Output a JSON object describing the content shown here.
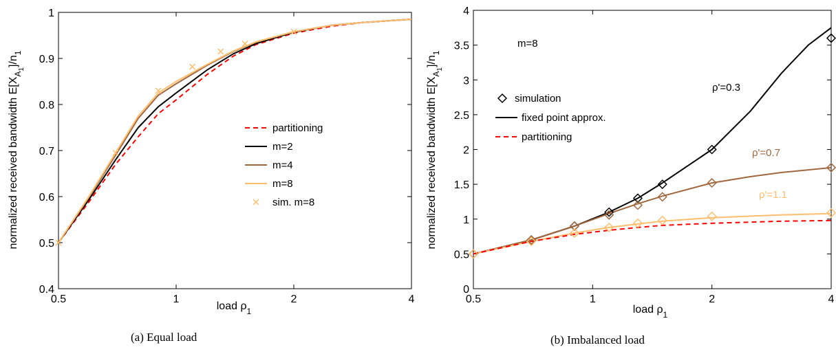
{
  "chart_data": [
    {
      "type": "line",
      "caption": "(a) Equal load",
      "xlabel": "load ρ",
      "xlabel_sub": "1",
      "ylabel": "normalized received bandwidth E[X",
      "ylabel_sub1": "A",
      "ylabel_subsub": "1",
      "ylabel_mid": "]/n",
      "ylabel_sub2": "1",
      "xscale": "log",
      "xlim": [
        0.5,
        4
      ],
      "ylim": [
        0.4,
        1
      ],
      "xticks": [
        0.5,
        1,
        2,
        4
      ],
      "xtick_labels": [
        "0.5",
        "1",
        "2",
        "4"
      ],
      "yticks": [
        0.4,
        0.5,
        0.6,
        0.7,
        0.8,
        0.9,
        1
      ],
      "ytick_labels": [
        "0.4",
        "0.5",
        "0.6",
        "0.7",
        "0.8",
        "0.9",
        "1"
      ],
      "legend_position": "center-right",
      "series": [
        {
          "name": "partitioning",
          "color": "#ff0000",
          "style": "dashed",
          "x": [
            0.5,
            0.6,
            0.7,
            0.8,
            0.9,
            1.0,
            1.2,
            1.4,
            1.6,
            2.0,
            2.5,
            3.0,
            4.0
          ],
          "y": [
            0.5,
            0.59,
            0.67,
            0.73,
            0.78,
            0.81,
            0.865,
            0.905,
            0.93,
            0.955,
            0.97,
            0.978,
            0.985
          ]
        },
        {
          "name": "m=2",
          "color": "#000000",
          "style": "solid",
          "x": [
            0.5,
            0.6,
            0.7,
            0.8,
            0.9,
            1.0,
            1.2,
            1.4,
            1.6,
            2.0,
            2.5,
            3.0,
            4.0
          ],
          "y": [
            0.5,
            0.595,
            0.68,
            0.75,
            0.795,
            0.825,
            0.875,
            0.91,
            0.932,
            0.957,
            0.972,
            0.978,
            0.985
          ]
        },
        {
          "name": "m=4",
          "color": "#a0673d",
          "style": "solid",
          "x": [
            0.5,
            0.6,
            0.7,
            0.8,
            0.9,
            1.0,
            1.2,
            1.4,
            1.6,
            2.0,
            2.5,
            3.0,
            4.0
          ],
          "y": [
            0.5,
            0.6,
            0.69,
            0.77,
            0.82,
            0.845,
            0.885,
            0.915,
            0.935,
            0.958,
            0.972,
            0.978,
            0.985
          ]
        },
        {
          "name": "m=8",
          "color": "#ffbe6e",
          "style": "solid",
          "x": [
            0.5,
            0.6,
            0.7,
            0.8,
            0.9,
            1.0,
            1.2,
            1.4,
            1.6,
            2.0,
            2.5,
            3.0,
            4.0
          ],
          "y": [
            0.5,
            0.602,
            0.695,
            0.775,
            0.825,
            0.85,
            0.887,
            0.916,
            0.936,
            0.958,
            0.972,
            0.978,
            0.985
          ]
        },
        {
          "name": "sim. m=8",
          "color": "#ffbe6e",
          "style": "marker-x",
          "x": [
            0.5,
            0.7,
            0.9,
            1.1,
            1.3,
            1.5,
            2.0
          ],
          "y": [
            0.5,
            0.695,
            0.83,
            0.882,
            0.915,
            0.932,
            0.958
          ]
        }
      ]
    },
    {
      "type": "line",
      "caption": "(b) Imbalanced load",
      "xlabel": "load ρ",
      "xlabel_sub": "1",
      "ylabel": "normalized received bandwidth E[X",
      "ylabel_sub1": "A",
      "ylabel_subsub": "1",
      "ylabel_mid": "]/n",
      "ylabel_sub2": "1",
      "xscale": "log",
      "xlim": [
        0.5,
        4
      ],
      "ylim": [
        0,
        4
      ],
      "xticks": [
        0.5,
        1,
        2,
        4
      ],
      "xtick_labels": [
        "0.5",
        "1",
        "2",
        "4"
      ],
      "yticks": [
        0,
        0.5,
        1,
        1.5,
        2,
        2.5,
        3,
        3.5,
        4
      ],
      "ytick_labels": [
        "0",
        "0.5",
        "1",
        "1.5",
        "2",
        "2.5",
        "3",
        "3.5",
        "4"
      ],
      "legend_position": "top-left",
      "legend": [
        {
          "label": "simulation",
          "kind": "diamond"
        },
        {
          "label": "fixed point approx.",
          "kind": "solid"
        },
        {
          "label": "partitioning",
          "kind": "dashed"
        }
      ],
      "annotations": [
        {
          "text": "m=8",
          "color": "#000000"
        },
        {
          "text": "ρ'=0.3",
          "color": "#000000"
        },
        {
          "text": "ρ'=0.7",
          "color": "#a0673d"
        },
        {
          "text": "ρ'=1.1",
          "color": "#ffbe6e"
        }
      ],
      "series": [
        {
          "name": "ρ'=0.3",
          "color": "#000000",
          "style": "solid",
          "x": [
            0.5,
            0.7,
            0.9,
            1.1,
            1.3,
            1.5,
            2.0,
            2.5,
            3.0,
            3.5,
            4.0
          ],
          "y": [
            0.5,
            0.7,
            0.9,
            1.1,
            1.3,
            1.52,
            2.0,
            2.55,
            3.1,
            3.5,
            3.75
          ]
        },
        {
          "name": "ρ'=0.7",
          "color": "#a0673d",
          "style": "solid",
          "x": [
            0.5,
            0.7,
            0.9,
            1.1,
            1.3,
            1.5,
            2.0,
            2.5,
            3.0,
            4.0
          ],
          "y": [
            0.5,
            0.7,
            0.9,
            1.08,
            1.22,
            1.33,
            1.52,
            1.61,
            1.67,
            1.74
          ]
        },
        {
          "name": "ρ'=1.1",
          "color": "#ffbe6e",
          "style": "solid",
          "x": [
            0.5,
            0.7,
            0.9,
            1.1,
            1.3,
            1.5,
            2.0,
            3.0,
            4.0
          ],
          "y": [
            0.5,
            0.68,
            0.8,
            0.88,
            0.93,
            0.97,
            1.02,
            1.06,
            1.08
          ]
        },
        {
          "name": "partitioning",
          "color": "#ff0000",
          "style": "dashed",
          "x": [
            0.5,
            0.7,
            0.9,
            1.1,
            1.3,
            1.5,
            2.0,
            3.0,
            4.0
          ],
          "y": [
            0.5,
            0.68,
            0.78,
            0.84,
            0.88,
            0.91,
            0.94,
            0.97,
            0.98
          ]
        },
        {
          "name": "sim ρ'=0.3",
          "color": "#000000",
          "style": "marker-diamond",
          "x": [
            0.5,
            0.7,
            0.9,
            1.1,
            1.3,
            1.5,
            2.0,
            4.0
          ],
          "y": [
            0.5,
            0.7,
            0.9,
            1.1,
            1.3,
            1.5,
            2.0,
            3.6
          ]
        },
        {
          "name": "sim ρ'=0.7",
          "color": "#a0673d",
          "style": "marker-diamond",
          "x": [
            0.5,
            0.7,
            0.9,
            1.1,
            1.3,
            1.5,
            2.0,
            4.0
          ],
          "y": [
            0.5,
            0.7,
            0.9,
            1.06,
            1.2,
            1.32,
            1.52,
            1.74
          ]
        },
        {
          "name": "sim ρ'=1.1",
          "color": "#ffbe6e",
          "style": "marker-diamond",
          "x": [
            0.5,
            0.7,
            0.9,
            1.1,
            1.3,
            1.5,
            2.0,
            4.0
          ],
          "y": [
            0.5,
            0.68,
            0.8,
            0.88,
            0.94,
            0.98,
            1.04,
            1.09
          ]
        }
      ]
    }
  ]
}
